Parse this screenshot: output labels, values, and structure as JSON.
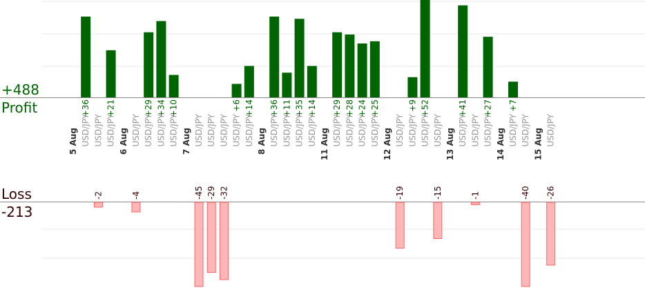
{
  "colors": {
    "profit_fill": "#006400",
    "profit_text": "#006400",
    "loss_fill": "#ffb6b6",
    "loss_stroke": "#ff6666",
    "loss_text": "#330000",
    "pair_text": "#999999",
    "grid": "#e8e8e8",
    "axis": "#888888"
  },
  "summary": {
    "profit_total": "+488",
    "profit_label": "Profit",
    "loss_label": "Loss",
    "loss_total": "-213"
  },
  "chart_data": {
    "type": "bar",
    "title": "",
    "xlabel": "",
    "ylabel": "",
    "grid": true,
    "profit_ylim": [
      0,
      40
    ],
    "loss_ylim": [
      -32,
      0
    ],
    "slots": [
      {
        "date": "5 Aug"
      },
      {
        "pair": "USD/JPY",
        "value": 36,
        "label": "+36"
      },
      {
        "pair": "USD/JPY",
        "value": -2,
        "label": "-2"
      },
      {
        "pair": "USD/JPY",
        "value": 21,
        "label": "+21"
      },
      {
        "date": "6 Aug"
      },
      {
        "pair": "USD/JPY",
        "value": -4,
        "label": "-4"
      },
      {
        "pair": "USD/JPY",
        "value": 29,
        "label": "+29"
      },
      {
        "pair": "USD/JPY",
        "value": 34,
        "label": "+34"
      },
      {
        "pair": "USD/JPY",
        "value": 10,
        "label": "+10"
      },
      {
        "date": "7 Aug"
      },
      {
        "pair": "USD/JPY",
        "value": -45,
        "label": "-45"
      },
      {
        "pair": "USD/JPY",
        "value": -29,
        "label": "-29"
      },
      {
        "pair": "USD/JPY",
        "value": -32,
        "label": "-32"
      },
      {
        "pair": "USD/JPY",
        "value": 6,
        "label": "+6"
      },
      {
        "pair": "USD/JPY",
        "value": 14,
        "label": "+14"
      },
      {
        "date": "8 Aug"
      },
      {
        "pair": "USD/JPY",
        "value": 36,
        "label": "+36"
      },
      {
        "pair": "USD/JPY",
        "value": 11,
        "label": "+11"
      },
      {
        "pair": "USD/JPY",
        "value": 35,
        "label": "+35"
      },
      {
        "pair": "USD/JPY",
        "value": 14,
        "label": "+14"
      },
      {
        "date": "11 Aug"
      },
      {
        "pair": "USD/JPY",
        "value": 29,
        "label": "+29"
      },
      {
        "pair": "USD/JPY",
        "value": 28,
        "label": "+28"
      },
      {
        "pair": "USD/JPY",
        "value": 24,
        "label": "+24"
      },
      {
        "pair": "USD/JPY",
        "value": 25,
        "label": "+25"
      },
      {
        "date": "12 Aug"
      },
      {
        "pair": "USD/JPY",
        "value": -19,
        "label": "-19"
      },
      {
        "pair": "USD/JPY",
        "value": 9,
        "label": "+9"
      },
      {
        "pair": "USD/JPY",
        "value": 52,
        "label": "+52"
      },
      {
        "pair": "USD/JPY",
        "value": -15,
        "label": "-15"
      },
      {
        "date": "13 Aug"
      },
      {
        "pair": "USD/JPY",
        "value": 41,
        "label": "+41"
      },
      {
        "pair": "USD/JPY",
        "value": -1,
        "label": "-1"
      },
      {
        "pair": "USD/JPY",
        "value": 27,
        "label": "+27"
      },
      {
        "date": "14 Aug"
      },
      {
        "pair": "USD/JPY",
        "value": 7,
        "label": "+7"
      },
      {
        "pair": "USD/JPY",
        "value": -40,
        "label": "-40"
      },
      {
        "date": "15 Aug"
      },
      {
        "pair": "USD/JPY",
        "value": -26,
        "label": "-26"
      }
    ]
  }
}
